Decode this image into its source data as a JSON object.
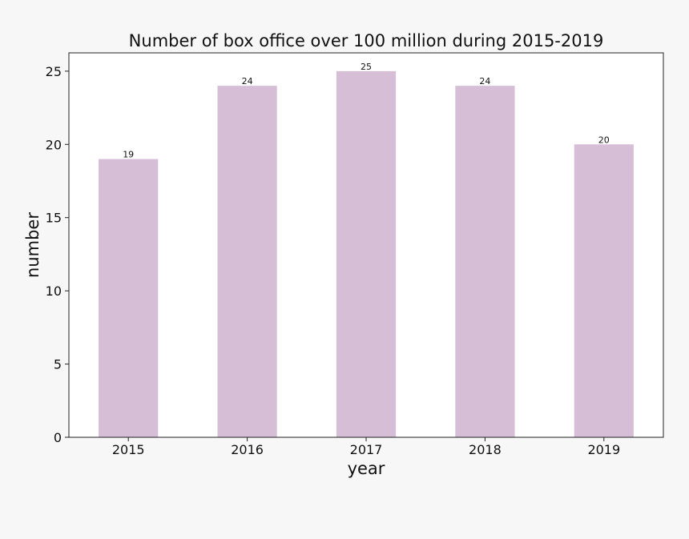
{
  "chart_data": {
    "type": "bar",
    "title": "Number of box office over 100 million during 2015-2019",
    "xlabel": "year",
    "ylabel": "number",
    "categories": [
      "2015",
      "2016",
      "2017",
      "2018",
      "2019"
    ],
    "values": [
      19,
      24,
      25,
      24,
      20
    ],
    "ylim": [
      0,
      26.25
    ],
    "yticks": [
      0,
      5,
      10,
      15,
      20,
      25
    ],
    "bar_color": "#d6bed7",
    "show_data_labels": true,
    "grid": false,
    "legend": "none"
  }
}
